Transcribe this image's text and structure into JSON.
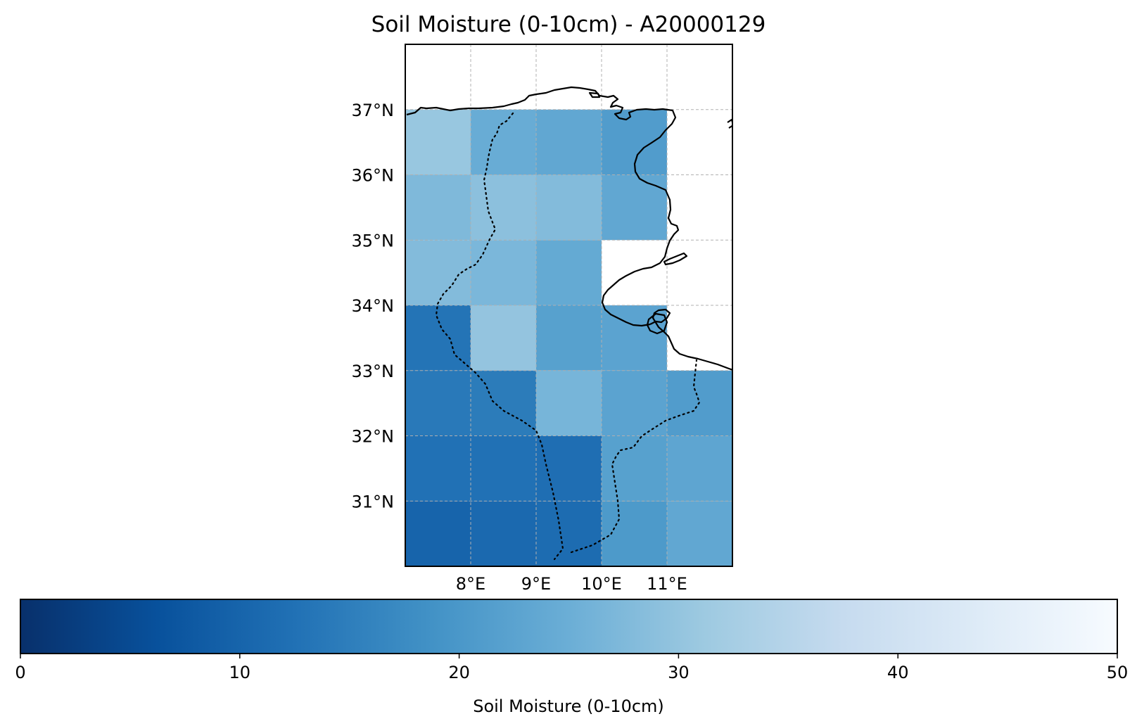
{
  "chart_data": {
    "type": "heatmap",
    "title": "Soil Moisture (0-10cm) - A20000129",
    "map": {
      "lon_range": [
        7.0,
        12.0
      ],
      "lat_range": [
        30.0,
        38.0
      ],
      "lon_ticks": [
        8,
        9,
        10,
        11
      ],
      "lon_tick_labels": [
        "8°E",
        "9°E",
        "10°E",
        "11°E"
      ],
      "lat_ticks": [
        31,
        32,
        33,
        34,
        35,
        36,
        37
      ],
      "lat_tick_labels": [
        "31°N",
        "32°N",
        "33°N",
        "34°N",
        "35°N",
        "36°N",
        "37°N"
      ],
      "gridlines": true
    },
    "grid": {
      "lon_edges": [
        7,
        8,
        9,
        10,
        11,
        12
      ],
      "lat_edges": [
        37,
        36,
        35,
        34,
        33,
        32,
        31,
        30
      ],
      "values": [
        [
          30.5,
          24.5,
          23.5,
          21.0,
          null
        ],
        [
          27.5,
          29.0,
          28.0,
          23.5,
          null
        ],
        [
          28.0,
          27.0,
          24.0,
          null,
          null
        ],
        [
          13.0,
          30.0,
          22.0,
          22.5,
          null
        ],
        [
          14.0,
          14.5,
          26.5,
          22.5,
          21.0
        ],
        [
          12.5,
          12.5,
          12.0,
          22.0,
          23.0
        ],
        [
          10.0,
          11.0,
          11.5,
          20.5,
          23.5
        ]
      ]
    },
    "colorbar": {
      "label": "Soil Moisture (0-10cm)",
      "vmin": 0,
      "vmax": 50,
      "ticks": [
        0,
        10,
        20,
        30,
        40,
        50
      ],
      "tick_labels": [
        "0",
        "10",
        "20",
        "30",
        "40",
        "50"
      ],
      "colormap": "Blues_r",
      "color_stops": [
        "#08306b",
        "#08519c",
        "#2171b5",
        "#4292c6",
        "#6baed6",
        "#9ecae1",
        "#c6dbef",
        "#deebf7",
        "#f7fbff"
      ]
    }
  }
}
